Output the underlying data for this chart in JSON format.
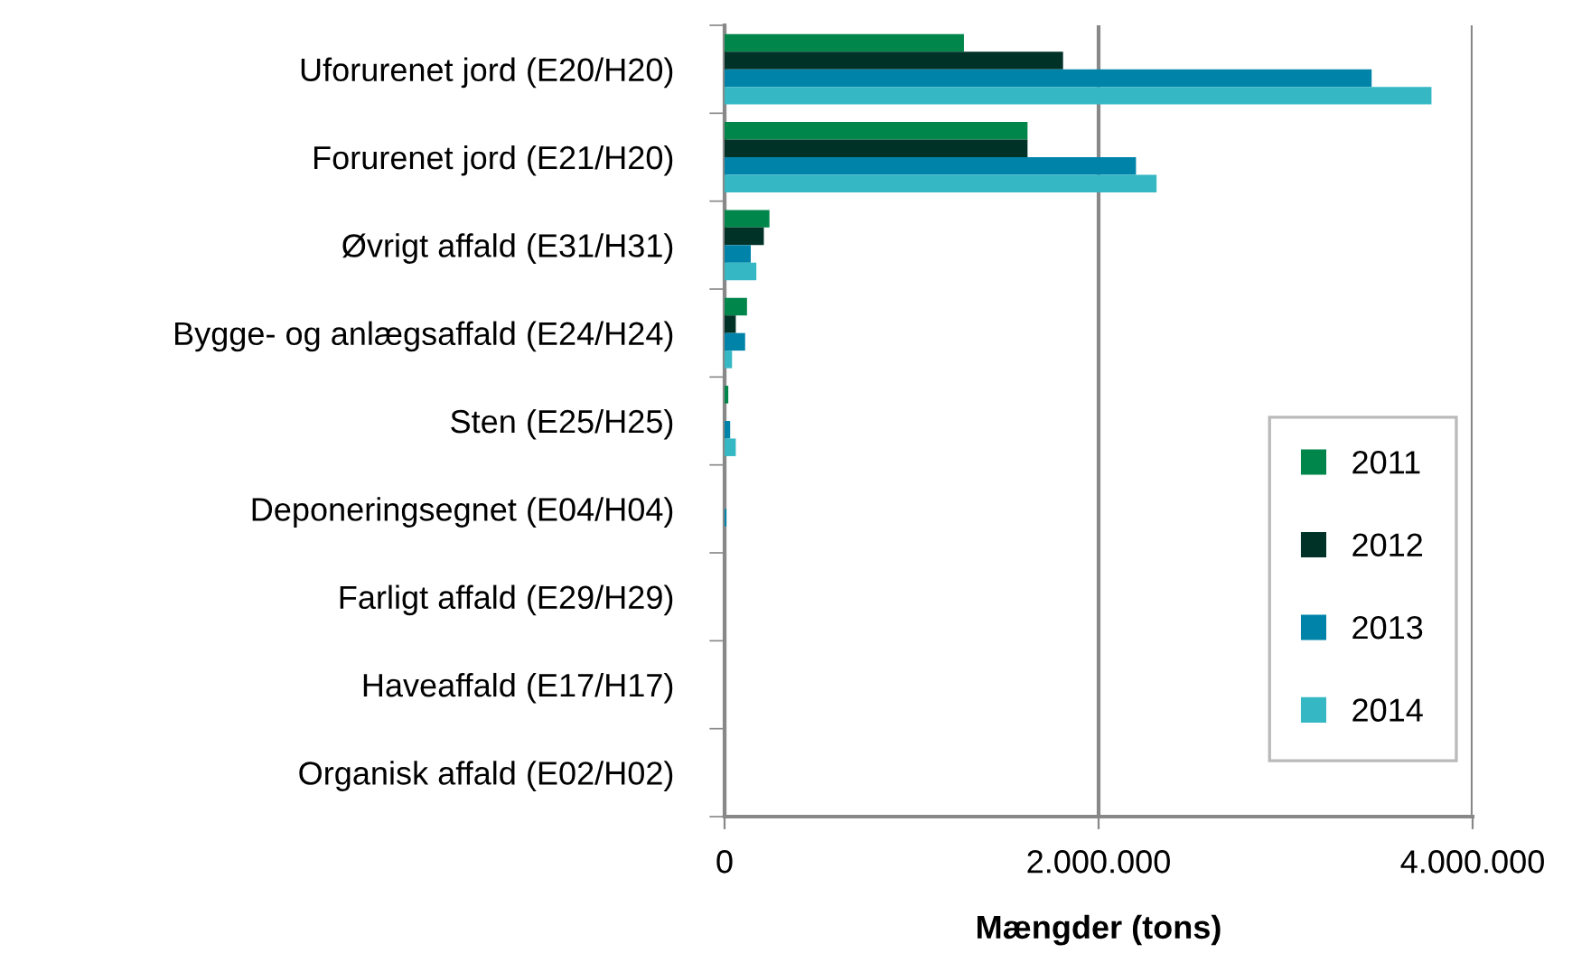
{
  "chart_data": {
    "type": "bar",
    "orientation": "horizontal",
    "xlabel": "Mængder (tons)",
    "categories": [
      "Uforurenet jord (E20/H20)",
      "Forurenet jord (E21/H20)",
      "Øvrigt affald (E31/H31)",
      "Bygge- og anlægsaffald (E24/H24)",
      "Sten (E25/H25)",
      "Deponeringsegnet (E04/H04)",
      "Farligt affald (E29/H29)",
      "Haveaffald (E17/H17)",
      "Organisk affald (E02/H02)"
    ],
    "series": [
      {
        "name": "2011",
        "color": "#00854a",
        "values": [
          1280000,
          1620000,
          240000,
          120000,
          20000,
          0,
          0,
          0,
          0
        ]
      },
      {
        "name": "2012",
        "color": "#003228",
        "values": [
          1810000,
          1620000,
          210000,
          60000,
          0,
          0,
          0,
          0,
          0
        ]
      },
      {
        "name": "2013",
        "color": "#0083a9",
        "values": [
          3460000,
          2200000,
          140000,
          110000,
          30000,
          10000,
          0,
          0,
          0
        ]
      },
      {
        "name": "2014",
        "color": "#35b8c4",
        "values": [
          3780000,
          2310000,
          170000,
          40000,
          60000,
          0,
          0,
          0,
          0
        ]
      }
    ],
    "xlim": [
      0,
      4000000
    ],
    "xticks": [
      0,
      {
        "value": 2000000,
        "label": "2.000.000"
      },
      {
        "value": 4000000,
        "label": "4.000.000"
      }
    ],
    "grid": "x",
    "legend": "bottom right"
  }
}
